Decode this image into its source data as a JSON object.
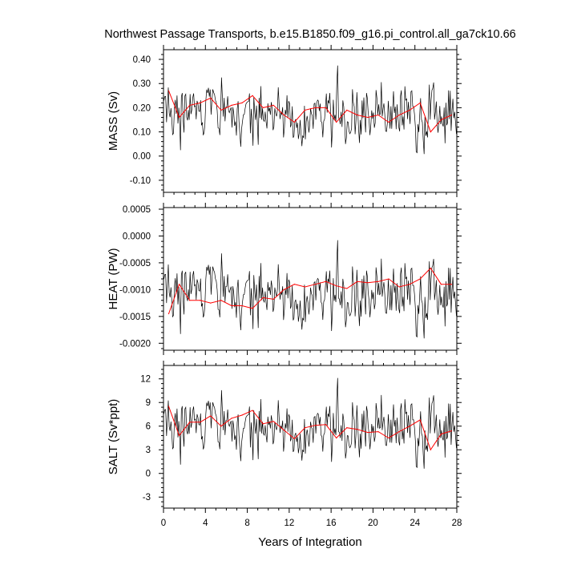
{
  "title": "Northwest Passage Transports, b.e15.B1850.f09_g16.pi_control.all_ga7ck10.66",
  "xlabel": "Years of Integration",
  "colors": {
    "raw": "#000000",
    "smooth": "#ff0000",
    "frame": "#000000"
  },
  "chart_data": [
    {
      "type": "line",
      "ylabel": "MASS (Sv)",
      "xlim": [
        0,
        28
      ],
      "ylim": [
        -0.15,
        0.44
      ],
      "yticks": [
        -0.1,
        0.0,
        0.1,
        0.2,
        0.3,
        0.4
      ],
      "ytick_labels": [
        "-0.10",
        "0.00",
        "0.10",
        "0.20",
        "0.30",
        "0.40"
      ],
      "xticks": [
        0,
        4,
        8,
        12,
        16,
        20,
        24,
        28
      ],
      "xtick_labels": [
        "0",
        "4",
        "8",
        "12",
        "16",
        "20",
        "24",
        "28"
      ],
      "series": [
        {
          "style": "monthly",
          "base": 0.18,
          "amplitude": 0.07
        },
        {
          "style": "annual-mean",
          "x": [
            0.5,
            1.5,
            2.5,
            3.5,
            4.5,
            5.5,
            6.5,
            7.5,
            8.5,
            9.5,
            10.5,
            11.5,
            12.5,
            13.5,
            14.5,
            15.5,
            16.5,
            17.5,
            18.5,
            19.5,
            20.5,
            21.5,
            22.5,
            23.5,
            24.5,
            25.5,
            26.5,
            27.5
          ],
          "y": [
            0.27,
            0.16,
            0.21,
            0.22,
            0.24,
            0.19,
            0.21,
            0.22,
            0.25,
            0.2,
            0.21,
            0.17,
            0.14,
            0.19,
            0.2,
            0.2,
            0.14,
            0.19,
            0.17,
            0.16,
            0.17,
            0.14,
            0.17,
            0.19,
            0.22,
            0.1,
            0.15,
            0.17
          ]
        }
      ]
    },
    {
      "type": "line",
      "ylabel": "HEAT (PW)",
      "xlim": [
        0,
        28
      ],
      "ylim": [
        -0.00213,
        0.00053
      ],
      "yticks": [
        -0.002,
        -0.0015,
        -0.001,
        -0.0005,
        0.0,
        0.0005
      ],
      "ytick_labels": [
        "-0.0020",
        "-0.0015",
        "-0.0010",
        "-0.0005",
        "0.0000",
        "0.0005"
      ],
      "xticks": [
        0,
        4,
        8,
        12,
        16,
        20,
        24,
        28
      ],
      "xtick_labels": [
        "0",
        "4",
        "8",
        "12",
        "16",
        "20",
        "24",
        "28"
      ],
      "series": [
        {
          "style": "monthly",
          "base": -0.00105,
          "amplitude": 0.00035
        },
        {
          "style": "annual-mean",
          "x": [
            0.5,
            1.5,
            2.5,
            3.5,
            4.5,
            5.5,
            6.5,
            7.5,
            8.5,
            9.5,
            10.5,
            11.5,
            12.5,
            13.5,
            14.5,
            15.5,
            16.5,
            17.5,
            18.5,
            19.5,
            20.5,
            21.5,
            22.5,
            23.5,
            24.5,
            25.5,
            26.5,
            27.5
          ],
          "y": [
            -0.00145,
            -0.0009,
            -0.0012,
            -0.0012,
            -0.00125,
            -0.0012,
            -0.0013,
            -0.0013,
            -0.00135,
            -0.00115,
            -0.00118,
            -0.001,
            -0.0009,
            -0.00095,
            -0.0009,
            -0.00085,
            -0.00093,
            -0.00098,
            -0.00085,
            -0.00087,
            -0.00085,
            -0.0008,
            -0.00095,
            -0.0009,
            -0.0008,
            -0.0006,
            -0.0009,
            -0.0009
          ]
        }
      ]
    },
    {
      "type": "line",
      "ylabel": "SALT (Sv*ppt)",
      "xlim": [
        0,
        28
      ],
      "ylim": [
        -4.4,
        13.7
      ],
      "yticks": [
        -3,
        0,
        3,
        6,
        9,
        12
      ],
      "ytick_labels": [
        "-3",
        "0",
        "3",
        "6",
        "9",
        "12"
      ],
      "xticks": [
        0,
        4,
        8,
        12,
        16,
        20,
        24,
        28
      ],
      "xtick_labels": [
        "0",
        "4",
        "8",
        "12",
        "16",
        "20",
        "24",
        "28"
      ],
      "series": [
        {
          "style": "monthly",
          "base": 6.0,
          "amplitude": 2.2
        },
        {
          "style": "annual-mean",
          "x": [
            0.5,
            1.5,
            2.5,
            3.5,
            4.5,
            5.5,
            6.5,
            7.5,
            8.5,
            9.5,
            10.5,
            11.5,
            12.5,
            13.5,
            14.5,
            15.5,
            16.5,
            17.5,
            18.5,
            19.5,
            20.5,
            21.5,
            22.5,
            23.5,
            24.5,
            25.5,
            26.5,
            27.5
          ],
          "y": [
            8.5,
            4.8,
            6.5,
            6.5,
            7.3,
            6.0,
            7.0,
            7.4,
            8.0,
            6.3,
            6.6,
            5.5,
            4.4,
            5.8,
            6.1,
            6.2,
            4.5,
            5.8,
            5.6,
            5.2,
            5.3,
            4.5,
            5.3,
            6.0,
            6.8,
            3.0,
            5.0,
            5.4
          ]
        }
      ]
    }
  ]
}
